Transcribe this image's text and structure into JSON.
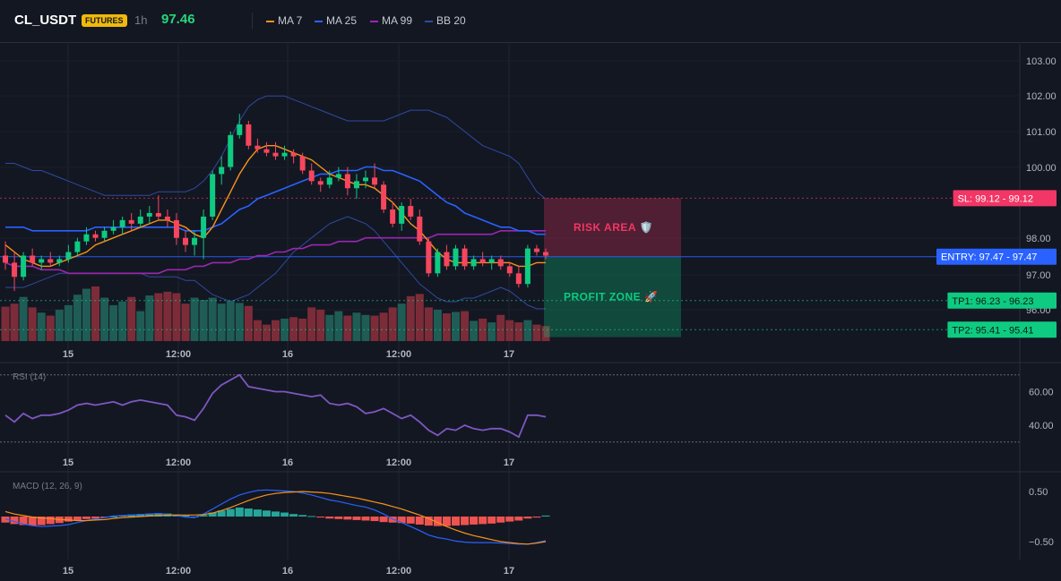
{
  "header": {
    "symbol": "CL_USDT",
    "badge": "FUTURES",
    "timeframe": "1h",
    "last_price": "97.46",
    "indicators": [
      {
        "label": "MA 7",
        "color": "#f7931a"
      },
      {
        "label": "MA 25",
        "color": "#2962ff"
      },
      {
        "label": "MA 99",
        "color": "#9c27b0"
      },
      {
        "label": "BB 20",
        "color": "#2f4aa0"
      }
    ]
  },
  "colors": {
    "up": "#26a69a",
    "up_bright": "#0ecb81",
    "down": "#f6465d",
    "vol_up": "#1f5c55",
    "vol_down": "#7c2c38",
    "rsi": "#7e57c2",
    "macd": "#2962ff",
    "signal": "#f7931a"
  },
  "chart_data": [
    {
      "type": "candlestick",
      "panel": "price",
      "x_ticks": [
        "15",
        "12:00",
        "16",
        "12:00",
        "17"
      ],
      "y_ticks": [
        "103.00",
        "102.00",
        "101.00",
        "100.00",
        "98.00",
        "97.00",
        "96.00"
      ],
      "ylim": [
        95.3,
        103.4
      ],
      "candles": [
        [
          97.5,
          97.9,
          97.1,
          97.3
        ],
        [
          97.3,
          97.6,
          96.5,
          96.9
        ],
        [
          96.9,
          97.6,
          96.8,
          97.5
        ],
        [
          97.5,
          97.7,
          97.2,
          97.3
        ],
        [
          97.3,
          97.5,
          97.1,
          97.4
        ],
        [
          97.4,
          97.6,
          97.2,
          97.3
        ],
        [
          97.3,
          97.5,
          97.2,
          97.4
        ],
        [
          97.4,
          97.8,
          97.3,
          97.6
        ],
        [
          97.6,
          98.0,
          97.5,
          97.9
        ],
        [
          97.9,
          98.3,
          97.8,
          98.1
        ],
        [
          98.1,
          98.2,
          97.9,
          98.0
        ],
        [
          98.0,
          98.3,
          97.9,
          98.2
        ],
        [
          98.2,
          98.5,
          98.1,
          98.3
        ],
        [
          98.3,
          98.6,
          98.1,
          98.5
        ],
        [
          98.5,
          98.7,
          98.2,
          98.4
        ],
        [
          98.4,
          98.8,
          98.3,
          98.6
        ],
        [
          98.6,
          98.9,
          98.4,
          98.7
        ],
        [
          98.7,
          99.2,
          98.5,
          98.6
        ],
        [
          98.6,
          98.8,
          98.3,
          98.5
        ],
        [
          98.5,
          98.7,
          97.8,
          98.0
        ],
        [
          98.0,
          98.2,
          97.6,
          97.8
        ],
        [
          97.8,
          98.2,
          97.5,
          98.0
        ],
        [
          98.0,
          98.8,
          97.4,
          98.6
        ],
        [
          98.6,
          99.9,
          98.5,
          99.8
        ],
        [
          99.8,
          100.3,
          99.5,
          100.0
        ],
        [
          100.0,
          101.0,
          99.9,
          100.9
        ],
        [
          100.9,
          101.5,
          100.8,
          101.2
        ],
        [
          101.2,
          101.3,
          100.5,
          100.6
        ],
        [
          100.6,
          100.8,
          100.4,
          100.5
        ],
        [
          100.5,
          100.7,
          100.3,
          100.4
        ],
        [
          100.4,
          100.7,
          100.2,
          100.3
        ],
        [
          100.3,
          100.6,
          100.2,
          100.4
        ],
        [
          100.4,
          100.5,
          100.1,
          100.3
        ],
        [
          100.3,
          100.4,
          99.8,
          99.9
        ],
        [
          99.9,
          100.1,
          99.5,
          99.6
        ],
        [
          99.6,
          99.7,
          99.3,
          99.5
        ],
        [
          99.5,
          99.9,
          99.4,
          99.7
        ],
        [
          99.7,
          100.0,
          99.6,
          99.8
        ],
        [
          99.8,
          100.0,
          99.2,
          99.4
        ],
        [
          99.4,
          99.8,
          99.1,
          99.6
        ],
        [
          99.6,
          99.9,
          99.4,
          99.7
        ],
        [
          99.7,
          100.1,
          99.4,
          99.5
        ],
        [
          99.5,
          99.6,
          98.7,
          98.8
        ],
        [
          98.8,
          99.0,
          98.3,
          98.4
        ],
        [
          98.4,
          99.0,
          98.2,
          98.9
        ],
        [
          98.9,
          99.1,
          98.5,
          98.6
        ],
        [
          98.6,
          98.8,
          97.8,
          97.9
        ],
        [
          97.9,
          98.0,
          96.9,
          97.0
        ],
        [
          97.0,
          97.7,
          96.9,
          97.6
        ],
        [
          97.6,
          97.8,
          97.1,
          97.2
        ],
        [
          97.2,
          97.8,
          97.1,
          97.7
        ],
        [
          97.7,
          97.8,
          97.1,
          97.2
        ],
        [
          97.2,
          97.5,
          97.1,
          97.4
        ],
        [
          97.4,
          97.6,
          97.2,
          97.3
        ],
        [
          97.3,
          97.5,
          97.1,
          97.4
        ],
        [
          97.4,
          97.5,
          97.1,
          97.2
        ],
        [
          97.2,
          97.3,
          96.9,
          97.0
        ],
        [
          97.0,
          97.2,
          96.6,
          96.7
        ],
        [
          96.7,
          97.8,
          96.6,
          97.7
        ],
        [
          97.7,
          97.8,
          97.5,
          97.6
        ],
        [
          97.6,
          97.7,
          97.4,
          97.5
        ]
      ],
      "volume": [
        46,
        50,
        59,
        45,
        38,
        34,
        42,
        48,
        62,
        70,
        73,
        58,
        48,
        53,
        59,
        40,
        61,
        64,
        66,
        64,
        50,
        58,
        55,
        58,
        50,
        54,
        51,
        47,
        28,
        22,
        28,
        30,
        32,
        30,
        45,
        42,
        35,
        40,
        34,
        38,
        35,
        34,
        38,
        45,
        50,
        60,
        63,
        45,
        42,
        37,
        39,
        40,
        27,
        30,
        25,
        35,
        28,
        25,
        28,
        22,
        20
      ],
      "ma7": [
        97.8,
        97.6,
        97.4,
        97.3,
        97.2,
        97.2,
        97.3,
        97.4,
        97.5,
        97.6,
        97.8,
        97.9,
        98.0,
        98.1,
        98.2,
        98.3,
        98.4,
        98.5,
        98.5,
        98.4,
        98.3,
        98.1,
        98.0,
        98.3,
        98.8,
        99.3,
        99.8,
        100.2,
        100.5,
        100.6,
        100.6,
        100.5,
        100.4,
        100.3,
        100.2,
        100.0,
        99.8,
        99.7,
        99.6,
        99.5,
        99.5,
        99.4,
        99.2,
        99.0,
        98.7,
        98.4,
        98.2,
        97.9,
        97.6,
        97.4,
        97.3,
        97.3,
        97.3,
        97.3,
        97.3,
        97.3,
        97.3,
        97.2,
        97.2,
        97.3,
        97.3
      ],
      "ma25": [
        98.3,
        98.3,
        98.3,
        98.2,
        98.2,
        98.2,
        98.2,
        98.2,
        98.2,
        98.2,
        98.3,
        98.3,
        98.3,
        98.3,
        98.3,
        98.3,
        98.3,
        98.3,
        98.3,
        98.3,
        98.2,
        98.2,
        98.2,
        98.3,
        98.4,
        98.6,
        98.8,
        98.9,
        99.1,
        99.2,
        99.3,
        99.4,
        99.5,
        99.6,
        99.7,
        99.8,
        99.8,
        99.9,
        99.9,
        99.9,
        100.0,
        100.0,
        99.9,
        99.9,
        99.8,
        99.7,
        99.6,
        99.4,
        99.2,
        99.0,
        98.9,
        98.7,
        98.6,
        98.5,
        98.4,
        98.3,
        98.3,
        98.2,
        98.2,
        98.1,
        98.1
      ],
      "ma99": [
        97.3,
        97.2,
        97.2,
        97.2,
        97.1,
        97.1,
        97.1,
        97.0,
        97.0,
        97.0,
        97.0,
        97.0,
        97.0,
        97.0,
        97.0,
        97.0,
        97.0,
        97.0,
        97.1,
        97.1,
        97.1,
        97.2,
        97.2,
        97.3,
        97.3,
        97.3,
        97.4,
        97.4,
        97.5,
        97.5,
        97.6,
        97.6,
        97.7,
        97.7,
        97.8,
        97.8,
        97.8,
        97.9,
        97.9,
        97.9,
        98.0,
        98.0,
        98.0,
        98.0,
        98.0,
        98.0,
        98.0,
        98.0,
        98.1,
        98.1,
        98.1,
        98.1,
        98.1,
        98.1,
        98.1,
        98.2,
        98.2,
        98.2,
        98.2,
        98.2,
        98.2
      ],
      "bb_upper": [
        100.1,
        100.1,
        100.0,
        99.9,
        99.9,
        99.8,
        99.7,
        99.6,
        99.5,
        99.4,
        99.3,
        99.2,
        99.2,
        99.2,
        99.2,
        99.2,
        99.2,
        99.3,
        99.3,
        99.3,
        99.3,
        99.4,
        99.6,
        99.9,
        100.3,
        100.8,
        101.3,
        101.7,
        101.9,
        102.0,
        102.0,
        102.0,
        101.9,
        101.8,
        101.7,
        101.6,
        101.5,
        101.4,
        101.3,
        101.3,
        101.3,
        101.3,
        101.3,
        101.4,
        101.5,
        101.6,
        101.6,
        101.6,
        101.5,
        101.4,
        101.2,
        101.0,
        100.8,
        100.6,
        100.5,
        100.4,
        100.3,
        100.1,
        99.7,
        99.3,
        99.1
      ],
      "bb_lower": [
        96.6,
        96.6,
        96.6,
        96.7,
        96.8,
        96.9,
        97.0,
        97.0,
        97.0,
        97.0,
        97.0,
        97.0,
        97.0,
        97.0,
        97.0,
        97.0,
        96.9,
        96.9,
        96.9,
        96.9,
        96.8,
        96.8,
        96.6,
        96.4,
        96.3,
        96.2,
        96.3,
        96.4,
        96.6,
        96.8,
        97.0,
        97.3,
        97.6,
        97.8,
        98.0,
        98.2,
        98.4,
        98.5,
        98.6,
        98.5,
        98.4,
        98.2,
        97.9,
        97.6,
        97.3,
        97.0,
        96.7,
        96.5,
        96.3,
        96.2,
        96.2,
        96.3,
        96.3,
        96.4,
        96.5,
        96.6,
        96.5,
        96.3,
        96.1,
        96.0,
        96.0
      ],
      "levels": [
        {
          "label": "SL: 99.12 - 99.12",
          "value": 99.12,
          "color": "#f23665"
        },
        {
          "label": "ENTRY: 97.47 - 97.47",
          "value": 97.47,
          "color": "#2962ff"
        },
        {
          "label": "TP1: 96.23 - 96.23",
          "value": 96.23,
          "color": "#0ecb81"
        },
        {
          "label": "TP2: 95.41 - 95.41",
          "value": 95.41,
          "color": "#0ecb81"
        }
      ],
      "zones": [
        {
          "label": "RISK AREA 🛡️",
          "from": 99.12,
          "to": 97.47,
          "color": "#f23665"
        },
        {
          "label": "PROFIT ZONE 🚀",
          "from": 97.47,
          "to": 95.2,
          "color": "#0ecb81"
        }
      ]
    },
    {
      "type": "line",
      "panel": "rsi",
      "title": "RSI (14)",
      "y_ticks": [
        "60.00",
        "40.00"
      ],
      "ylim": [
        28,
        72
      ],
      "levels": [
        70,
        30
      ],
      "values": [
        46,
        42,
        47,
        44,
        46,
        46,
        47,
        49,
        52,
        53,
        52,
        53,
        54,
        52,
        54,
        55,
        54,
        53,
        52,
        46,
        45,
        43,
        50,
        59,
        64,
        67,
        70,
        63,
        62,
        61,
        60,
        60,
        59,
        58,
        57,
        58,
        53,
        52,
        53,
        51,
        47,
        48,
        50,
        47,
        44,
        46,
        42,
        37,
        34,
        38,
        37,
        40,
        38,
        37,
        38,
        38,
        36,
        33,
        46,
        46,
        45
      ],
      "x_ticks": [
        "15",
        "12:00",
        "16",
        "12:00",
        "17"
      ]
    },
    {
      "type": "bar",
      "panel": "macd",
      "title": "MACD (12, 26, 9)",
      "y_ticks": [
        "0.50",
        "−0.50"
      ],
      "ylim": [
        -0.75,
        0.7
      ],
      "histogram": [
        -0.12,
        -0.15,
        -0.17,
        -0.18,
        -0.17,
        -0.15,
        -0.13,
        -0.1,
        -0.07,
        -0.05,
        -0.04,
        -0.02,
        0.0,
        0.02,
        0.04,
        0.05,
        0.06,
        0.07,
        0.06,
        0.04,
        0.02,
        0.0,
        0.03,
        0.08,
        0.12,
        0.15,
        0.18,
        0.16,
        0.14,
        0.12,
        0.1,
        0.08,
        0.05,
        0.03,
        0.01,
        -0.02,
        -0.04,
        -0.05,
        -0.06,
        -0.07,
        -0.08,
        -0.09,
        -0.11,
        -0.12,
        -0.13,
        -0.14,
        -0.16,
        -0.18,
        -0.19,
        -0.19,
        -0.18,
        -0.17,
        -0.16,
        -0.15,
        -0.14,
        -0.12,
        -0.1,
        -0.08,
        -0.04,
        -0.02,
        0.02
      ],
      "macd": [
        -0.05,
        -0.1,
        -0.15,
        -0.18,
        -0.2,
        -0.19,
        -0.18,
        -0.16,
        -0.12,
        -0.08,
        -0.05,
        -0.02,
        0.01,
        0.02,
        0.03,
        0.04,
        0.05,
        0.06,
        0.04,
        0.02,
        -0.01,
        -0.02,
        0.05,
        0.15,
        0.25,
        0.35,
        0.43,
        0.48,
        0.52,
        0.53,
        0.52,
        0.51,
        0.5,
        0.47,
        0.43,
        0.38,
        0.33,
        0.3,
        0.26,
        0.22,
        0.19,
        0.13,
        0.05,
        -0.05,
        -0.12,
        -0.2,
        -0.28,
        -0.37,
        -0.42,
        -0.45,
        -0.49,
        -0.51,
        -0.52,
        -0.52,
        -0.52,
        -0.53,
        -0.54,
        -0.55,
        -0.55,
        -0.52,
        -0.48
      ],
      "signal": [
        0.1,
        0.05,
        0.02,
        -0.01,
        -0.03,
        -0.04,
        -0.06,
        -0.07,
        -0.08,
        -0.08,
        -0.07,
        -0.06,
        -0.04,
        -0.02,
        -0.01,
        0.0,
        0.01,
        0.02,
        0.03,
        0.03,
        0.03,
        0.03,
        0.04,
        0.07,
        0.12,
        0.18,
        0.25,
        0.32,
        0.38,
        0.43,
        0.46,
        0.48,
        0.49,
        0.5,
        0.49,
        0.48,
        0.46,
        0.43,
        0.4,
        0.37,
        0.33,
        0.29,
        0.25,
        0.2,
        0.15,
        0.09,
        0.03,
        -0.04,
        -0.12,
        -0.2,
        -0.27,
        -0.33,
        -0.38,
        -0.42,
        -0.46,
        -0.5,
        -0.52,
        -0.54,
        -0.55,
        -0.53,
        -0.5
      ],
      "x_ticks": [
        "15",
        "12:00",
        "16",
        "12:00",
        "17"
      ]
    }
  ]
}
